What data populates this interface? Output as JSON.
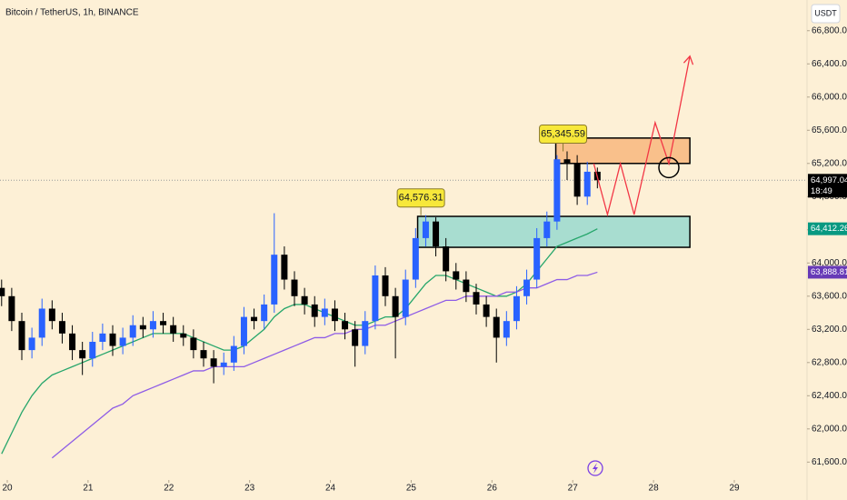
{
  "chart_data": {
    "type": "candlestick",
    "title": "Bitcoin / TetherUS, 1h, BINANCE",
    "currency": "USDT",
    "xlim": [
      19.91,
      29.9
    ],
    "xticks": [
      20,
      21,
      22,
      23,
      24,
      25,
      26,
      27,
      28,
      29
    ],
    "ylim": [
      61450,
      67170
    ],
    "yticks": [
      {
        "value": 61600,
        "label": "61,600.00"
      },
      {
        "value": 62000,
        "label": "62,000.00"
      },
      {
        "value": 62400,
        "label": "62,400.00"
      },
      {
        "value": 62800,
        "label": "62,800.00"
      },
      {
        "value": 63200,
        "label": "63,200.00"
      },
      {
        "value": 63600,
        "label": "63,600.00"
      },
      {
        "value": 64000,
        "label": "64,000.00"
      },
      {
        "value": 64400,
        "label": "64,400.00"
      },
      {
        "value": 64800,
        "label": "64,800.00"
      },
      {
        "value": 65200,
        "label": "65,200.00"
      },
      {
        "value": 65600,
        "label": "65,600.00"
      },
      {
        "value": 66000,
        "label": "66,000.00"
      },
      {
        "value": 66400,
        "label": "66,400.00"
      },
      {
        "value": 66800,
        "label": "66,800.00"
      }
    ],
    "up_color": "#2962ff",
    "down_color": "#000000",
    "x": [
      19.93,
      20.055,
      20.18,
      20.305,
      20.43,
      20.555,
      20.68,
      20.805,
      20.93,
      21.055,
      21.18,
      21.305,
      21.43,
      21.555,
      21.68,
      21.805,
      21.93,
      22.055,
      22.18,
      22.305,
      22.43,
      22.555,
      22.68,
      22.805,
      22.93,
      23.055,
      23.18,
      23.305,
      23.43,
      23.555,
      23.68,
      23.805,
      23.93,
      24.055,
      24.18,
      24.305,
      24.43,
      24.555,
      24.68,
      24.805,
      24.93,
      25.055,
      25.18,
      25.305,
      25.43,
      25.555,
      25.68,
      25.805,
      25.93,
      26.055,
      26.18,
      26.305,
      26.43,
      26.555,
      26.68,
      26.805,
      26.93,
      27.055,
      27.18,
      27.305
    ],
    "open": [
      63700,
      63600,
      63300,
      62950,
      63100,
      63450,
      63300,
      63150,
      62950,
      62850,
      63050,
      63150,
      63000,
      63100,
      63250,
      63200,
      63300,
      63250,
      63150,
      63100,
      62950,
      62850,
      62750,
      62800,
      63000,
      63350,
      63300,
      63500,
      64100,
      63800,
      63600,
      63500,
      63350,
      63450,
      63300,
      63200,
      63000,
      63300,
      63850,
      63600,
      63350,
      63800,
      64300,
      64500,
      64200,
      63900,
      63800,
      63650,
      63500,
      63350,
      63100,
      63300,
      63600,
      63800,
      64300,
      64500,
      65250,
      65200,
      64800,
      65100
    ],
    "high": [
      63800,
      63700,
      63400,
      63220,
      63570,
      63550,
      63400,
      63250,
      63050,
      63170,
      63270,
      63250,
      63220,
      63370,
      63350,
      63420,
      63400,
      63350,
      63250,
      63200,
      63050,
      62950,
      62920,
      63120,
      63470,
      63450,
      63620,
      64600,
      64200,
      63900,
      63700,
      63600,
      63570,
      63550,
      63400,
      63300,
      63420,
      63970,
      63950,
      63700,
      63920,
      64420,
      64576.31,
      64550,
      64300,
      64000,
      63900,
      63750,
      63600,
      63450,
      63420,
      63720,
      63920,
      64420,
      64620,
      65300,
      65345.59,
      65300,
      65220,
      65150
    ],
    "low": [
      63480,
      63180,
      62830,
      62850,
      63000,
      63200,
      63030,
      62830,
      62650,
      62750,
      62950,
      62880,
      62900,
      63000,
      63100,
      63100,
      63150,
      63050,
      63000,
      62850,
      62750,
      62550,
      62650,
      62700,
      62900,
      63200,
      63200,
      63400,
      63680,
      63480,
      63380,
      63230,
      63250,
      63180,
      63080,
      62750,
      62900,
      63200,
      63480,
      62850,
      63250,
      63700,
      64200,
      64080,
      63780,
      63680,
      63530,
      63380,
      63230,
      62800,
      63000,
      63200,
      63500,
      63700,
      64200,
      64400,
      65000,
      64700,
      64700,
      64900
    ],
    "close": [
      63600,
      63300,
      62950,
      63100,
      63450,
      63300,
      63150,
      62950,
      62850,
      63050,
      63150,
      63000,
      63100,
      63250,
      63200,
      63300,
      63250,
      63150,
      63100,
      62950,
      62850,
      62750,
      62800,
      63000,
      63350,
      63300,
      63500,
      64100,
      63800,
      63600,
      63500,
      63350,
      63450,
      63300,
      63200,
      63000,
      63300,
      63850,
      63600,
      63350,
      63800,
      64300,
      64500,
      64200,
      63900,
      63800,
      63650,
      63500,
      63350,
      63100,
      63300,
      63600,
      63800,
      64300,
      64500,
      65250,
      65200,
      64800,
      65100,
      64997.04
    ],
    "series": [
      {
        "color": "#26a66b",
        "values": [
          61700,
          61950,
          62200,
          62400,
          62550,
          62650,
          62700,
          62750,
          62800,
          62850,
          62900,
          62950,
          63000,
          63050,
          63100,
          63150,
          63150,
          63150,
          63150,
          63100,
          63050,
          63000,
          62950,
          62950,
          63000,
          63100,
          63200,
          63350,
          63450,
          63500,
          63500,
          63450,
          63400,
          63350,
          63300,
          63250,
          63250,
          63300,
          63350,
          63350,
          63450,
          63600,
          63750,
          63850,
          63850,
          63800,
          63750,
          63700,
          63650,
          63600,
          63600,
          63650,
          63750,
          63900,
          64050,
          64200,
          64250,
          64300,
          64350,
          64412.26
        ]
      },
      {
        "color": "#8e5ce6",
        "values": [
          null,
          null,
          null,
          null,
          null,
          61650,
          61750,
          61850,
          61950,
          62050,
          62150,
          62250,
          62300,
          62400,
          62450,
          62500,
          62550,
          62600,
          62650,
          62700,
          62700,
          62750,
          62750,
          62750,
          62750,
          62800,
          62850,
          62900,
          62950,
          63000,
          63050,
          63100,
          63100,
          63150,
          63150,
          63200,
          63200,
          63250,
          63250,
          63300,
          63350,
          63400,
          63450,
          63500,
          63550,
          63550,
          63600,
          63600,
          63600,
          63600,
          63650,
          63650,
          63700,
          63700,
          63750,
          63800,
          63800,
          63850,
          63850,
          63888.81
        ]
      }
    ],
    "price_labels": [
      {
        "value": 64997.04,
        "label": "64,997.04",
        "color": "#000000",
        "countdown": "18:49"
      },
      {
        "value": 64412.26,
        "label": "64,412.26",
        "color": "#089981"
      },
      {
        "value": 63888.81,
        "label": "63,888.81",
        "color": "#673ab7"
      }
    ],
    "callouts": [
      {
        "x": 25.12,
        "value": 64576.31,
        "label": "64,576.31"
      },
      {
        "x": 26.88,
        "value": 65345.59,
        "label": "65,345.59"
      }
    ],
    "zones": [
      {
        "x": [
          26.79,
          28.45
        ],
        "y": [
          65200,
          65506
        ],
        "color": "#f9c08b"
      },
      {
        "x": [
          25.08,
          28.45
        ],
        "y": [
          64189,
          64562
        ],
        "color": "#a8ddd0"
      }
    ],
    "projection": {
      "color": "#f23645",
      "x": [
        27.26,
        27.43,
        27.59,
        27.76,
        28.02,
        28.19,
        28.45
      ],
      "y": [
        65198,
        64584,
        65198,
        64584,
        65692,
        65198,
        66493
      ]
    },
    "marker": {
      "x": 28.19,
      "value": 65150
    }
  }
}
